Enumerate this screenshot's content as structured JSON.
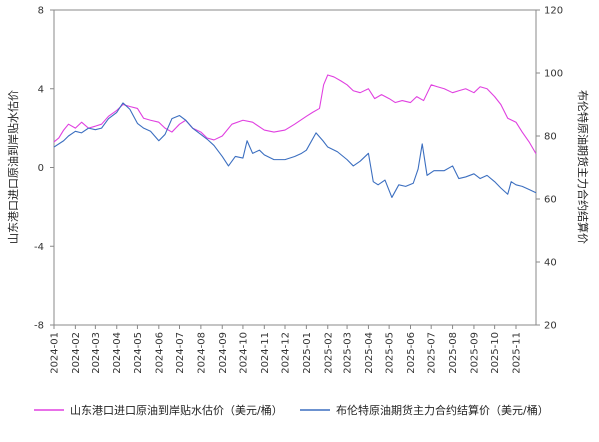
{
  "chart_data": {
    "type": "line",
    "title": "",
    "x_tick_labels": [
      "2024-01",
      "2024-02",
      "2024-03",
      "2024-04",
      "2024-05",
      "2024-06",
      "2024-07",
      "2024-08",
      "2024-09",
      "2024-10",
      "2024-11",
      "2024-12",
      "2025-01",
      "2025-02",
      "2025-03",
      "2025-04",
      "2025-05",
      "2025-06",
      "2025-07",
      "2025-08",
      "2025-09",
      "2025-10",
      "2025-11"
    ],
    "x_start": "2024-01-01",
    "x_end": "2025-11-30",
    "left_axis": {
      "label": "山东港口进口原油到岸贴水估价",
      "min": -8,
      "max": 8,
      "ticks": [
        8,
        4,
        0,
        -4,
        -8
      ]
    },
    "right_axis": {
      "label": "布伦特原油期货主力合约结算价",
      "min": 20,
      "max": 120,
      "ticks": [
        120,
        100,
        80,
        60,
        40,
        20
      ]
    },
    "grid": false,
    "legend_position": "bottom",
    "series": [
      {
        "name": "山东港口进口原油到岸贴水估价（美元/桶）",
        "axis": "left",
        "color": "#e040e0",
        "points": [
          [
            "2024-01-01",
            1.3
          ],
          [
            "2024-01-08",
            1.5
          ],
          [
            "2024-01-15",
            1.9
          ],
          [
            "2024-01-22",
            2.2
          ],
          [
            "2024-02-01",
            2.0
          ],
          [
            "2024-02-10",
            2.3
          ],
          [
            "2024-02-20",
            2.0
          ],
          [
            "2024-03-01",
            2.1
          ],
          [
            "2024-03-10",
            2.2
          ],
          [
            "2024-03-20",
            2.6
          ],
          [
            "2024-04-01",
            2.9
          ],
          [
            "2024-04-10",
            3.2
          ],
          [
            "2024-04-20",
            3.1
          ],
          [
            "2024-05-01",
            3.0
          ],
          [
            "2024-05-10",
            2.5
          ],
          [
            "2024-05-20",
            2.4
          ],
          [
            "2024-06-01",
            2.3
          ],
          [
            "2024-06-10",
            2.0
          ],
          [
            "2024-06-20",
            1.8
          ],
          [
            "2024-07-01",
            2.2
          ],
          [
            "2024-07-10",
            2.4
          ],
          [
            "2024-07-20",
            2.0
          ],
          [
            "2024-08-01",
            1.8
          ],
          [
            "2024-08-10",
            1.5
          ],
          [
            "2024-08-20",
            1.4
          ],
          [
            "2024-09-01",
            1.6
          ],
          [
            "2024-09-15",
            2.2
          ],
          [
            "2024-10-01",
            2.4
          ],
          [
            "2024-10-15",
            2.3
          ],
          [
            "2024-11-01",
            1.9
          ],
          [
            "2024-11-15",
            1.8
          ],
          [
            "2024-12-01",
            1.9
          ],
          [
            "2024-12-15",
            2.2
          ],
          [
            "2025-01-01",
            2.6
          ],
          [
            "2025-01-10",
            2.8
          ],
          [
            "2025-01-20",
            3.0
          ],
          [
            "2025-01-26",
            4.2
          ],
          [
            "2025-02-01",
            4.7
          ],
          [
            "2025-02-10",
            4.6
          ],
          [
            "2025-02-20",
            4.4
          ],
          [
            "2025-03-01",
            4.2
          ],
          [
            "2025-03-10",
            3.9
          ],
          [
            "2025-03-20",
            3.8
          ],
          [
            "2025-04-01",
            4.0
          ],
          [
            "2025-04-10",
            3.5
          ],
          [
            "2025-04-20",
            3.7
          ],
          [
            "2025-05-01",
            3.5
          ],
          [
            "2025-05-10",
            3.3
          ],
          [
            "2025-05-20",
            3.4
          ],
          [
            "2025-06-01",
            3.3
          ],
          [
            "2025-06-10",
            3.6
          ],
          [
            "2025-06-20",
            3.4
          ],
          [
            "2025-07-01",
            4.2
          ],
          [
            "2025-07-10",
            4.1
          ],
          [
            "2025-07-20",
            4.0
          ],
          [
            "2025-08-01",
            3.8
          ],
          [
            "2025-08-10",
            3.9
          ],
          [
            "2025-08-20",
            4.0
          ],
          [
            "2025-09-01",
            3.8
          ],
          [
            "2025-09-10",
            4.1
          ],
          [
            "2025-09-20",
            4.0
          ],
          [
            "2025-10-01",
            3.6
          ],
          [
            "2025-10-10",
            3.2
          ],
          [
            "2025-10-20",
            2.5
          ],
          [
            "2025-11-01",
            2.3
          ],
          [
            "2025-11-10",
            1.8
          ],
          [
            "2025-11-20",
            1.3
          ],
          [
            "2025-11-30",
            0.7
          ]
        ]
      },
      {
        "name": "布伦特原油期货主力合约结算价（美元/桶）",
        "axis": "right",
        "color": "#3c6fc0",
        "points": [
          [
            "2024-01-01",
            76.5
          ],
          [
            "2024-01-08",
            77.5
          ],
          [
            "2024-01-15",
            78.5
          ],
          [
            "2024-01-22",
            80.0
          ],
          [
            "2024-02-01",
            81.5
          ],
          [
            "2024-02-10",
            81.0
          ],
          [
            "2024-02-20",
            82.5
          ],
          [
            "2024-03-01",
            82.0
          ],
          [
            "2024-03-10",
            82.5
          ],
          [
            "2024-03-20",
            85.5
          ],
          [
            "2024-04-01",
            87.5
          ],
          [
            "2024-04-10",
            90.5
          ],
          [
            "2024-04-20",
            88.5
          ],
          [
            "2024-05-01",
            84.0
          ],
          [
            "2024-05-10",
            82.5
          ],
          [
            "2024-05-20",
            81.5
          ],
          [
            "2024-06-01",
            78.5
          ],
          [
            "2024-06-10",
            80.5
          ],
          [
            "2024-06-20",
            85.5
          ],
          [
            "2024-07-01",
            86.5
          ],
          [
            "2024-07-10",
            85.0
          ],
          [
            "2024-07-20",
            82.5
          ],
          [
            "2024-08-01",
            80.5
          ],
          [
            "2024-08-10",
            79.0
          ],
          [
            "2024-08-20",
            77.0
          ],
          [
            "2024-09-01",
            73.5
          ],
          [
            "2024-09-10",
            70.5
          ],
          [
            "2024-09-20",
            73.5
          ],
          [
            "2024-10-01",
            73.0
          ],
          [
            "2024-10-07",
            78.5
          ],
          [
            "2024-10-15",
            74.5
          ],
          [
            "2024-10-25",
            75.5
          ],
          [
            "2024-11-01",
            74.0
          ],
          [
            "2024-11-15",
            72.5
          ],
          [
            "2024-12-01",
            72.5
          ],
          [
            "2024-12-15",
            73.5
          ],
          [
            "2024-12-25",
            74.5
          ],
          [
            "2025-01-01",
            75.5
          ],
          [
            "2025-01-15",
            81.0
          ],
          [
            "2025-01-25",
            78.5
          ],
          [
            "2025-02-01",
            76.5
          ],
          [
            "2025-02-15",
            75.0
          ],
          [
            "2025-03-01",
            72.5
          ],
          [
            "2025-03-10",
            70.5
          ],
          [
            "2025-03-20",
            72.0
          ],
          [
            "2025-04-01",
            74.5
          ],
          [
            "2025-04-08",
            65.5
          ],
          [
            "2025-04-15",
            64.5
          ],
          [
            "2025-04-25",
            66.0
          ],
          [
            "2025-05-05",
            60.5
          ],
          [
            "2025-05-15",
            64.5
          ],
          [
            "2025-05-25",
            64.0
          ],
          [
            "2025-06-05",
            65.0
          ],
          [
            "2025-06-12",
            69.5
          ],
          [
            "2025-06-18",
            77.5
          ],
          [
            "2025-06-25",
            67.5
          ],
          [
            "2025-07-05",
            69.0
          ],
          [
            "2025-07-20",
            69.0
          ],
          [
            "2025-08-01",
            70.5
          ],
          [
            "2025-08-10",
            66.5
          ],
          [
            "2025-08-20",
            67.0
          ],
          [
            "2025-09-01",
            68.0
          ],
          [
            "2025-09-10",
            66.5
          ],
          [
            "2025-09-20",
            67.5
          ],
          [
            "2025-10-01",
            65.5
          ],
          [
            "2025-10-10",
            63.5
          ],
          [
            "2025-10-20",
            61.5
          ],
          [
            "2025-10-25",
            65.5
          ],
          [
            "2025-11-01",
            64.5
          ],
          [
            "2025-11-10",
            64.0
          ],
          [
            "2025-11-20",
            63.0
          ],
          [
            "2025-11-30",
            62.0
          ]
        ]
      }
    ]
  }
}
